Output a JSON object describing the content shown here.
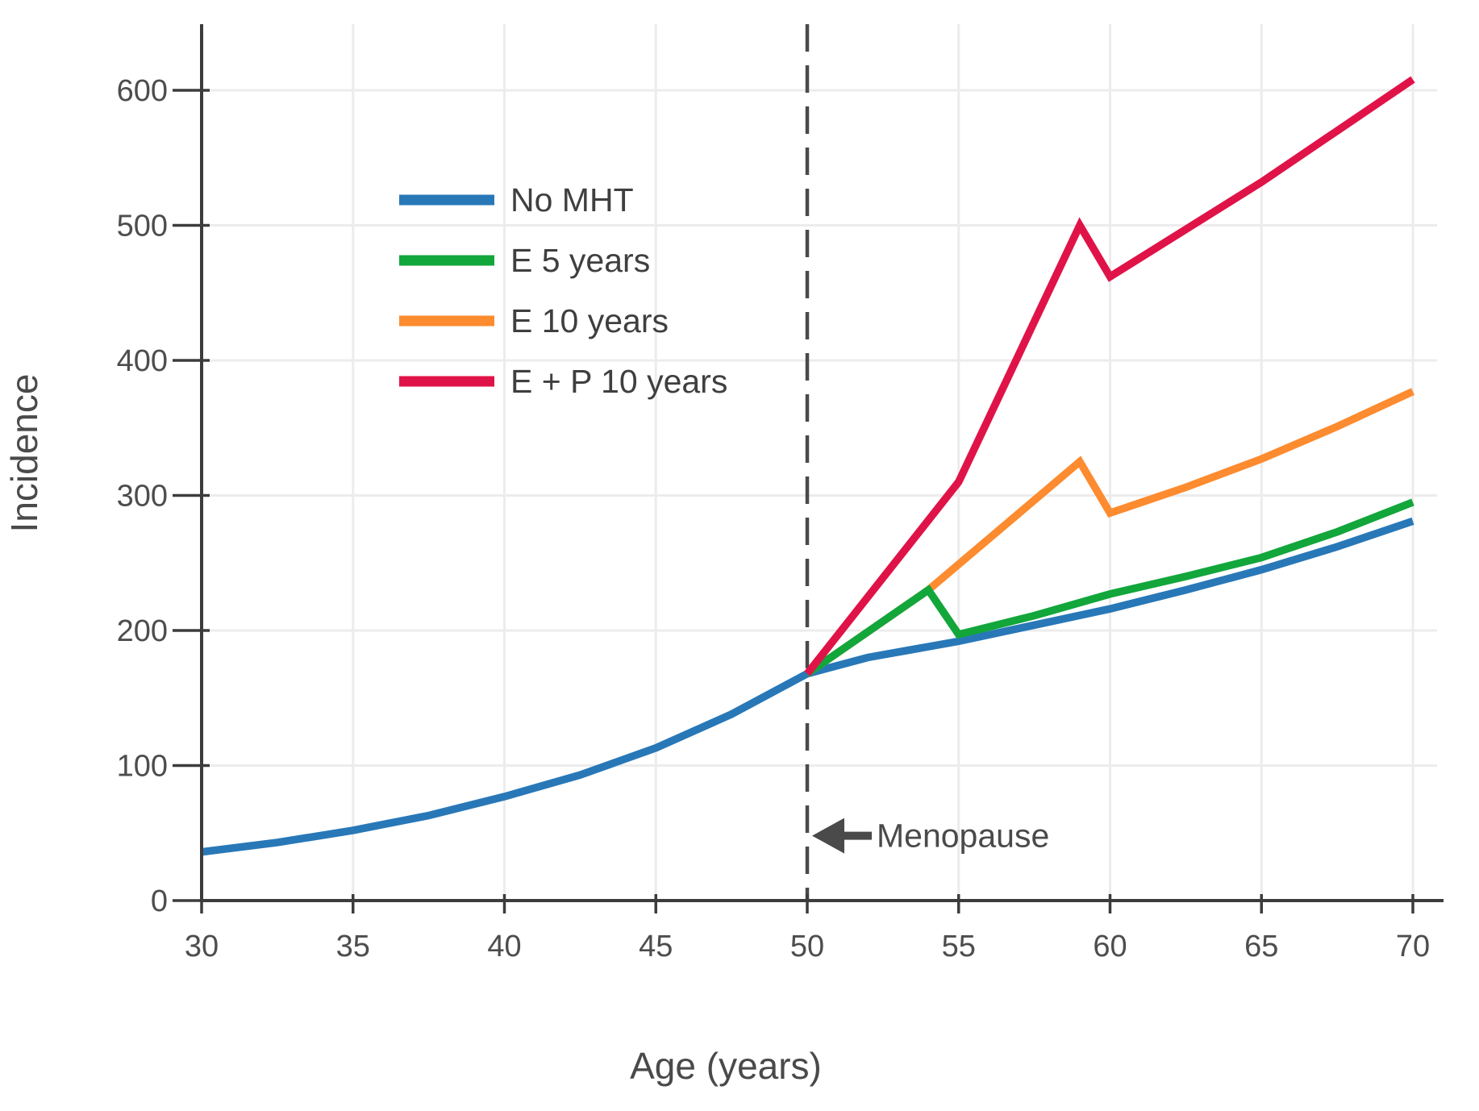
{
  "figure": {
    "background": "#ffffff"
  },
  "colors": {
    "no_mht": "#2878B8",
    "e5": "#12A63B",
    "e10": "#FD8B2F",
    "ep10": "#E01348",
    "axis": "#3c3c3c",
    "grid": "#ececec",
    "dashed_line": "#4a4a4a",
    "tick_text": "#4d4d4d",
    "legend_text": "#3f3f3f",
    "annotation": "#4a4a4a"
  },
  "chart_data": {
    "type": "line",
    "title": "",
    "xlabel": "Age (years)",
    "ylabel": "Incidence",
    "xlim": [
      30,
      70
    ],
    "ylim": [
      0,
      600
    ],
    "x_ticks": [
      30,
      35,
      40,
      45,
      50,
      55,
      60,
      65,
      70
    ],
    "y_ticks": [
      0,
      100,
      200,
      300,
      400,
      500,
      600
    ],
    "grid": true,
    "legend_position": "upper-left-inside",
    "reference_line": {
      "x": 50,
      "style": "dashed"
    },
    "annotations": [
      {
        "text": "Menopause",
        "arrow": "left",
        "x": 50,
        "y": 48
      }
    ],
    "series": [
      {
        "name": "No MHT",
        "color_key": "no_mht",
        "points": [
          [
            30,
            36
          ],
          [
            32.5,
            43
          ],
          [
            35,
            52
          ],
          [
            37.5,
            63
          ],
          [
            40,
            77
          ],
          [
            42.5,
            93
          ],
          [
            45,
            113
          ],
          [
            47.5,
            138
          ],
          [
            50,
            168
          ],
          [
            52,
            180
          ],
          [
            55,
            192
          ],
          [
            57.5,
            204
          ],
          [
            60,
            216
          ],
          [
            62.5,
            230
          ],
          [
            65,
            245
          ],
          [
            67.5,
            262
          ],
          [
            70,
            281
          ]
        ]
      },
      {
        "name": "E 10 years",
        "color_key": "e10",
        "points": [
          [
            50,
            168
          ],
          [
            54,
            230
          ],
          [
            59,
            325
          ],
          [
            60,
            287
          ],
          [
            62.5,
            306
          ],
          [
            65,
            327
          ],
          [
            67.5,
            351
          ],
          [
            70,
            377
          ]
        ]
      },
      {
        "name": "E 5 years",
        "color_key": "e5",
        "points": [
          [
            50,
            168
          ],
          [
            54,
            230
          ],
          [
            55,
            197
          ],
          [
            57.5,
            211
          ],
          [
            60,
            227
          ],
          [
            62.5,
            240
          ],
          [
            65,
            254
          ],
          [
            67.5,
            273
          ],
          [
            70,
            295
          ]
        ]
      },
      {
        "name": "E + P 10 years",
        "color_key": "ep10",
        "points": [
          [
            50,
            168
          ],
          [
            55,
            310
          ],
          [
            59,
            500
          ],
          [
            60,
            462
          ],
          [
            65,
            532
          ],
          [
            70,
            608
          ]
        ]
      }
    ],
    "legend_order": [
      "No MHT",
      "E 5 years",
      "E 10 years",
      "E + P 10 years"
    ]
  }
}
